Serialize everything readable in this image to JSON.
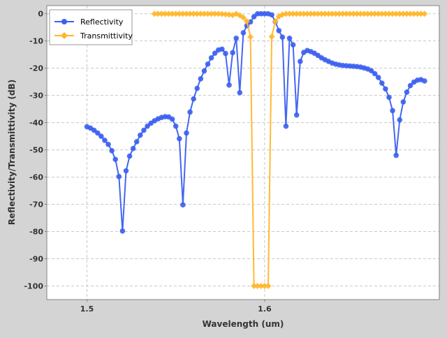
{
  "chart_data": {
    "type": "line",
    "xlabel": "Wavelength (um)",
    "ylabel": "Reflectivity/Transmittivity (dB)",
    "xlim": [
      1.4774,
      1.6983
    ],
    "ylim": [
      -105,
      3
    ],
    "x_ticks": [
      {
        "value": 1.5,
        "label": "1.5"
      },
      {
        "value": 1.6,
        "label": "1.6"
      }
    ],
    "y_ticks": [
      {
        "value": 0,
        "label": "0"
      },
      {
        "value": -10,
        "label": "-10"
      },
      {
        "value": -20,
        "label": "-20"
      },
      {
        "value": -30,
        "label": "-30"
      },
      {
        "value": -40,
        "label": "-40"
      },
      {
        "value": -50,
        "label": "-50"
      },
      {
        "value": -60,
        "label": "-60"
      },
      {
        "value": -70,
        "label": "-70"
      },
      {
        "value": -80,
        "label": "-80"
      },
      {
        "value": -90,
        "label": "-90"
      },
      {
        "value": -100,
        "label": "-100"
      }
    ],
    "grid": true,
    "legend_position": "top-left",
    "series": [
      {
        "name": "Reflectivity",
        "color": "#3b5ff0",
        "marker": "circle",
        "x": [
          1.5,
          1.502,
          1.504,
          1.506,
          1.508,
          1.51,
          1.512,
          1.514,
          1.516,
          1.518,
          1.52,
          1.522,
          1.524,
          1.526,
          1.528,
          1.53,
          1.532,
          1.534,
          1.536,
          1.538,
          1.54,
          1.542,
          1.544,
          1.546,
          1.548,
          1.55,
          1.552,
          1.554,
          1.556,
          1.558,
          1.56,
          1.562,
          1.564,
          1.566,
          1.568,
          1.57,
          1.572,
          1.574,
          1.576,
          1.578,
          1.58,
          1.582,
          1.584,
          1.586,
          1.588,
          1.59,
          1.592,
          1.594,
          1.596,
          1.598,
          1.6,
          1.602,
          1.604,
          1.606,
          1.608,
          1.61,
          1.612,
          1.614,
          1.616,
          1.618,
          1.62,
          1.622,
          1.624,
          1.626,
          1.628,
          1.63,
          1.632,
          1.634,
          1.636,
          1.638,
          1.64,
          1.642,
          1.644,
          1.646,
          1.648,
          1.65,
          1.652,
          1.654,
          1.656,
          1.658,
          1.66,
          1.662,
          1.664,
          1.666,
          1.668,
          1.67,
          1.672,
          1.674,
          1.676,
          1.678,
          1.68,
          1.682,
          1.684,
          1.686,
          1.688,
          1.69
        ],
        "values": [
          -41.5,
          -42,
          -42.8,
          -43.8,
          -45,
          -46.5,
          -48,
          -50.3,
          -53.5,
          -59.8,
          -79.8,
          -57.7,
          -52.3,
          -49.5,
          -47,
          -44.6,
          -42.8,
          -41.3,
          -40.2,
          -39.3,
          -38.6,
          -38.1,
          -37.8,
          -37.9,
          -38.7,
          -41.3,
          -45.9,
          -70.2,
          -43.8,
          -36.1,
          -31.3,
          -27.4,
          -23.9,
          -21,
          -18.5,
          -16.2,
          -14.5,
          -13.3,
          -13,
          -14.6,
          -26.2,
          -14.3,
          -9,
          -29,
          -7,
          -4.4,
          -3,
          -1.1,
          0,
          0,
          0,
          0,
          -0.4,
          -2.9,
          -6.2,
          -8.6,
          -41.3,
          -9,
          -11.4,
          -37.2,
          -17.5,
          -14.2,
          -13.5,
          -13.9,
          -14.5,
          -15.3,
          -16.2,
          -16.9,
          -17.5,
          -18.1,
          -18.5,
          -18.8,
          -19,
          -19.1,
          -19.2,
          -19.3,
          -19.4,
          -19.6,
          -19.9,
          -20.3,
          -20.9,
          -22,
          -23.4,
          -25.5,
          -27.6,
          -30.7,
          -35.6,
          -52,
          -39,
          -32.4,
          -28.8,
          -26.4,
          -25.1,
          -24.4,
          -24.2,
          -24.7
        ]
      },
      {
        "name": "Transmittivity",
        "color": "#ffb629",
        "marker": "diamond",
        "x": [
          1.538,
          1.54,
          1.542,
          1.544,
          1.546,
          1.548,
          1.55,
          1.552,
          1.554,
          1.556,
          1.558,
          1.56,
          1.562,
          1.564,
          1.566,
          1.568,
          1.57,
          1.572,
          1.574,
          1.576,
          1.578,
          1.58,
          1.582,
          1.584,
          1.586,
          1.588,
          1.59,
          1.592,
          1.594,
          1.596,
          1.598,
          1.6,
          1.602,
          1.604,
          1.606,
          1.608,
          1.61,
          1.612,
          1.614,
          1.616,
          1.618,
          1.62,
          1.622,
          1.624,
          1.626,
          1.628,
          1.63,
          1.632,
          1.634,
          1.636,
          1.638,
          1.64,
          1.642,
          1.644,
          1.646,
          1.648,
          1.65,
          1.652,
          1.654,
          1.656,
          1.658,
          1.66,
          1.662,
          1.664,
          1.666,
          1.668,
          1.67,
          1.672,
          1.674,
          1.676,
          1.678,
          1.68,
          1.682,
          1.684,
          1.686,
          1.688,
          1.69
        ],
        "values": [
          0,
          0,
          0,
          0,
          0,
          0,
          0,
          0,
          0,
          0,
          0,
          0,
          0,
          0,
          0,
          0,
          0,
          0,
          0,
          -0.1,
          -0.2,
          -0.3,
          -0.5,
          0,
          -0.6,
          -1.4,
          -2.8,
          -8.5,
          -100,
          -100,
          -100,
          -100,
          -100,
          -8.4,
          -2.8,
          -1,
          -0.3,
          0,
          0,
          0,
          0,
          0,
          0,
          0,
          0,
          0,
          0,
          0,
          0,
          0,
          0,
          0,
          0,
          0,
          0,
          0,
          0,
          0,
          0,
          0,
          0,
          0,
          0,
          0,
          0,
          0,
          0,
          0,
          0,
          0,
          0,
          0,
          0,
          0,
          0,
          0,
          0
        ]
      }
    ]
  }
}
